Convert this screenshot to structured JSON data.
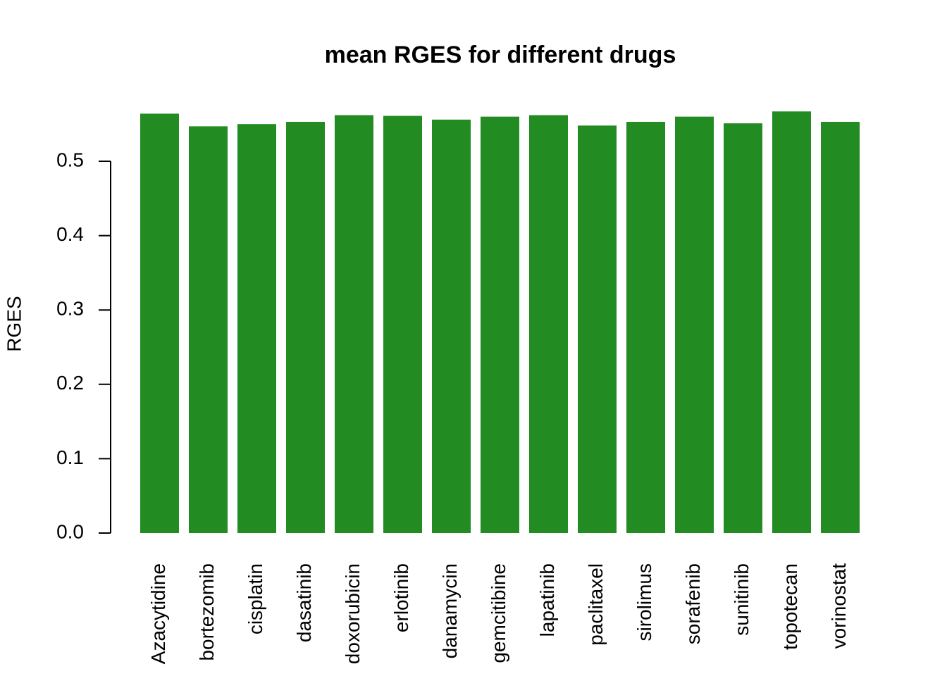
{
  "chart_data": {
    "type": "bar",
    "title": "mean RGES for different drugs",
    "y_label": "RGES",
    "categories": [
      "Azacytidine",
      "bortezomib",
      "cisplatin",
      "dasatinib",
      "doxorubicin",
      "erlotinib",
      "danamycin",
      "gemcitibine",
      "lapatinib",
      "paclitaxel",
      "sirolimus",
      "sorafenib",
      "sunitinib",
      "topotecan",
      "vorinostat"
    ],
    "values": [
      0.564,
      0.547,
      0.55,
      0.553,
      0.562,
      0.561,
      0.556,
      0.56,
      0.562,
      0.548,
      0.553,
      0.56,
      0.551,
      0.567,
      0.553
    ],
    "color": "#228b22",
    "ylim": [
      0,
      0.6
    ],
    "yticks": [
      {
        "value": 0,
        "label": "0.0"
      },
      0.1,
      0.2,
      0.3,
      0.4,
      0.5
    ],
    "grid": false
  }
}
